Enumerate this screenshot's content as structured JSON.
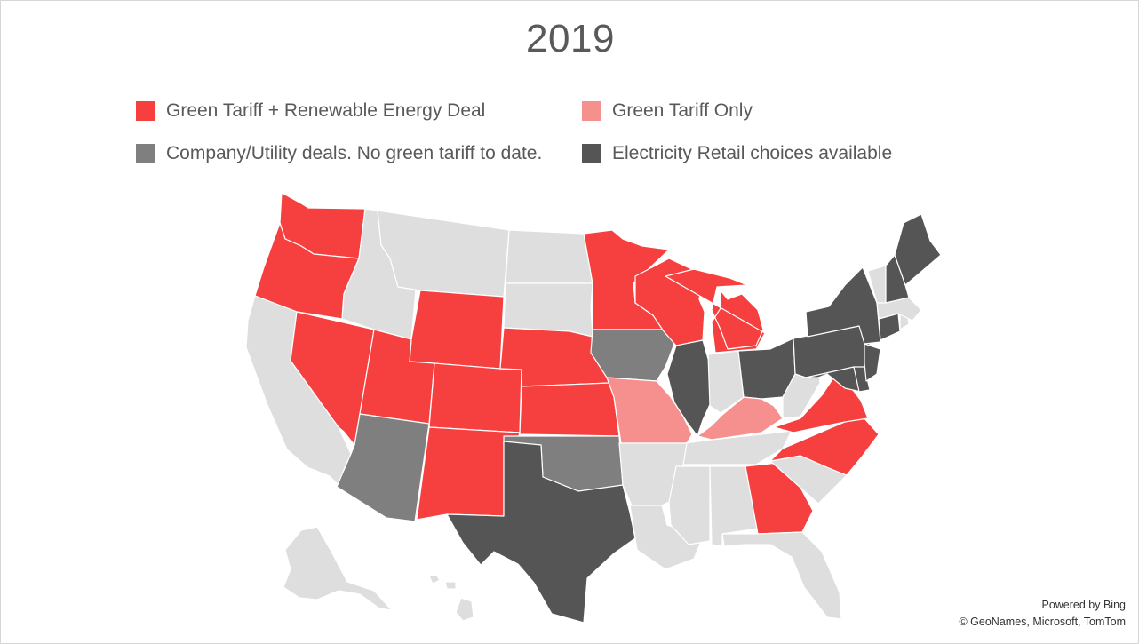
{
  "title": "2019",
  "colors": {
    "green_tariff_and_deal": "#f5403f",
    "green_tariff_only": "#f5908f",
    "utility_deals": "#7f7f7f",
    "retail_choice": "#555555",
    "none": "#dedede"
  },
  "legend": [
    {
      "label": "Green Tariff + Renewable Energy Deal",
      "category": "green_tariff_and_deal"
    },
    {
      "label": "Green Tariff Only",
      "category": "green_tariff_only"
    },
    {
      "label": "Company/Utility deals. No green tariff to date.",
      "category": "utility_deals"
    },
    {
      "label": "Electricity Retail choices available",
      "category": "retail_choice"
    }
  ],
  "states": {
    "WA": "green_tariff_and_deal",
    "OR": "green_tariff_and_deal",
    "NV": "green_tariff_and_deal",
    "UT": "green_tariff_and_deal",
    "WY": "green_tariff_and_deal",
    "CO": "green_tariff_and_deal",
    "NE": "green_tariff_and_deal",
    "KS": "green_tariff_and_deal",
    "NM": "green_tariff_and_deal",
    "MN": "green_tariff_and_deal",
    "WI": "green_tariff_and_deal",
    "MI": "green_tariff_and_deal",
    "VA": "green_tariff_and_deal",
    "NC": "green_tariff_and_deal",
    "GA": "green_tariff_and_deal",
    "MO": "green_tariff_only",
    "KY": "green_tariff_only",
    "AZ": "utility_deals",
    "IA": "utility_deals",
    "OK": "utility_deals",
    "TX": "retail_choice",
    "IL": "retail_choice",
    "OH": "retail_choice",
    "PA": "retail_choice",
    "NY": "retail_choice",
    "NJ": "retail_choice",
    "MD": "retail_choice",
    "DE": "retail_choice",
    "CT": "retail_choice",
    "NH": "retail_choice",
    "ME": "retail_choice",
    "CA": "none",
    "ID": "none",
    "MT": "none",
    "ND": "none",
    "SD": "none",
    "AR": "none",
    "LA": "none",
    "MS": "none",
    "AL": "none",
    "TN": "none",
    "IN": "none",
    "WV": "none",
    "SC": "none",
    "FL": "none",
    "VT": "none",
    "MA": "none",
    "RI": "none",
    "AK": "none",
    "HI": "none"
  },
  "attribution": {
    "line1": "Powered by Bing",
    "line2": "© GeoNames, Microsoft, TomTom"
  }
}
